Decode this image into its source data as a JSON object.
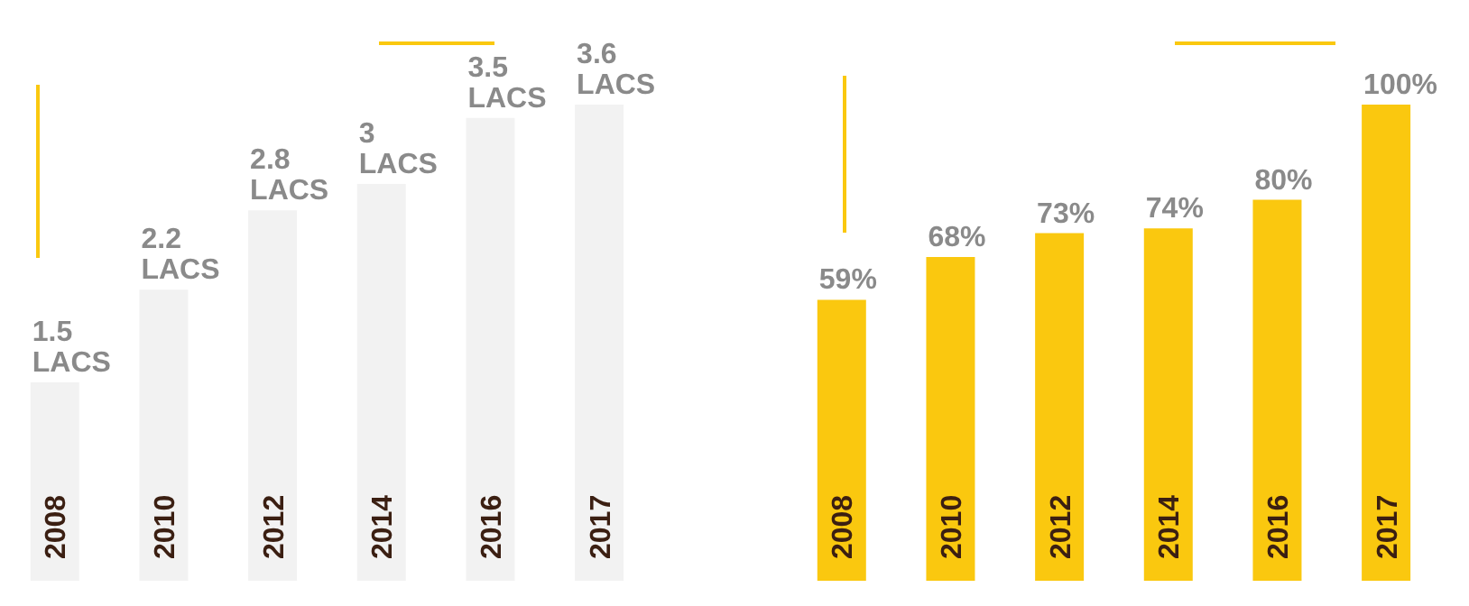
{
  "chart_data": [
    {
      "type": "bar",
      "categories": [
        "2008",
        "2010",
        "2012",
        "2014",
        "2016",
        "2017"
      ],
      "values": [
        1.5,
        2.2,
        2.8,
        3,
        3.5,
        3.6
      ],
      "color": "#f2f2f2",
      "value_labels": [
        "1.5 LACS",
        "2.2 LACS",
        "2.8 LACS",
        "3 LACS",
        "3.5 LACS",
        "3.6 LACS"
      ]
    },
    {
      "type": "bar",
      "categories": [
        "2008",
        "2010",
        "2012",
        "2014",
        "2016",
        "2017"
      ],
      "values": [
        59,
        68,
        73,
        74,
        80,
        100
      ],
      "color": "#fac80f",
      "value_labels": [
        "59%",
        "68%",
        "73%",
        "74%",
        "80%",
        "100%"
      ]
    }
  ]
}
